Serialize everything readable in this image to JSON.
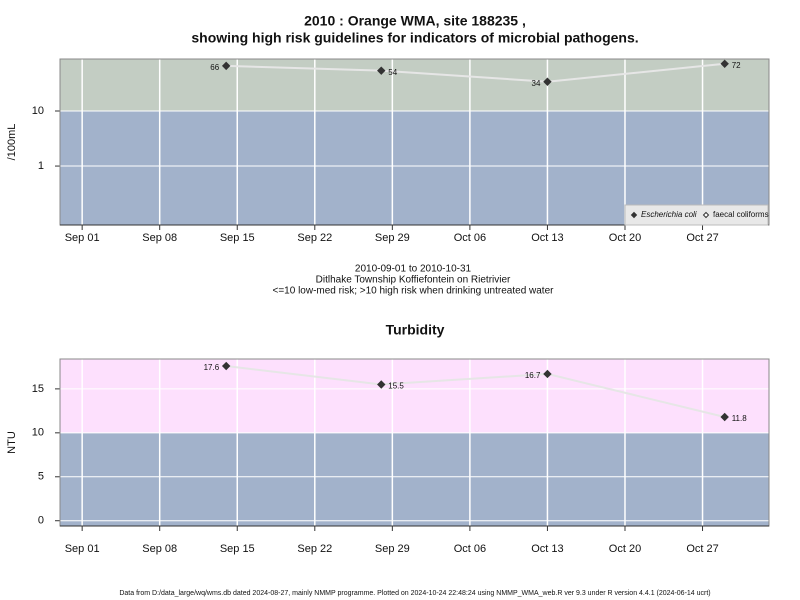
{
  "chart_data": [
    {
      "type": "line",
      "title": [
        "2010 : Orange WMA, site 188235 ,",
        "showing high risk guidelines for indicators of microbial pathogens."
      ],
      "ylabel": "/100mL",
      "log_y": true,
      "x": [
        "Sep 14",
        "Sep 28",
        "Oct 13",
        "Oct 29"
      ],
      "xlim": [
        "Aug 30",
        "Nov 02"
      ],
      "xticks": [
        "Sep 01",
        "Sep 08",
        "Sep 15",
        "Sep 22",
        "Sep 29",
        "Oct 06",
        "Oct 13",
        "Oct 20",
        "Oct 27"
      ],
      "ylim": [
        0.085,
        88
      ],
      "yticks": [
        1,
        10
      ],
      "threshold": 10,
      "band_colors": [
        "#a2b2cb",
        "#c3cdc3"
      ],
      "grid": true,
      "legend": "lower right",
      "series": [
        {
          "name": "Escherichia coli",
          "marker": "filled",
          "color": "#333333",
          "values": [
            66,
            54,
            34,
            72
          ]
        },
        {
          "name": "faecal coliforms",
          "marker": "open",
          "color": "#333333",
          "values": [
            null,
            null,
            null,
            null
          ]
        }
      ],
      "notes": [
        "2010-09-01 to 2010-10-31",
        "Ditlhake Township Koffiefontein on Rietrivier",
        "<=10 low-med risk; >10 high risk when drinking untreated water"
      ]
    },
    {
      "type": "line",
      "title": [
        "Turbidity"
      ],
      "ylabel": "NTU",
      "log_y": false,
      "x": [
        "Sep 14",
        "Sep 28",
        "Oct 13",
        "Oct 29"
      ],
      "xlim": [
        "Aug 30",
        "Nov 02"
      ],
      "xticks": [
        "Sep 01",
        "Sep 08",
        "Sep 15",
        "Sep 22",
        "Sep 29",
        "Oct 06",
        "Oct 13",
        "Oct 20",
        "Oct 27"
      ],
      "ylim": [
        -0.6,
        18.4
      ],
      "yticks": [
        0,
        5,
        10,
        15
      ],
      "threshold": 10,
      "band_colors": [
        "#a2b2cb",
        "#fde0fd"
      ],
      "grid": true,
      "color": "#333333",
      "values": [
        17.6,
        15.5,
        16.7,
        11.8
      ]
    }
  ],
  "footer": "Data from D:/data_large/wq/wms.db dated 2024-08-27, mainly NMMP programme. Plotted on 2024-10-24 22:48:24 using NMMP_WMA_web.R ver 9.3 under R version 4.4.1 (2024-06-14 ucrt)"
}
